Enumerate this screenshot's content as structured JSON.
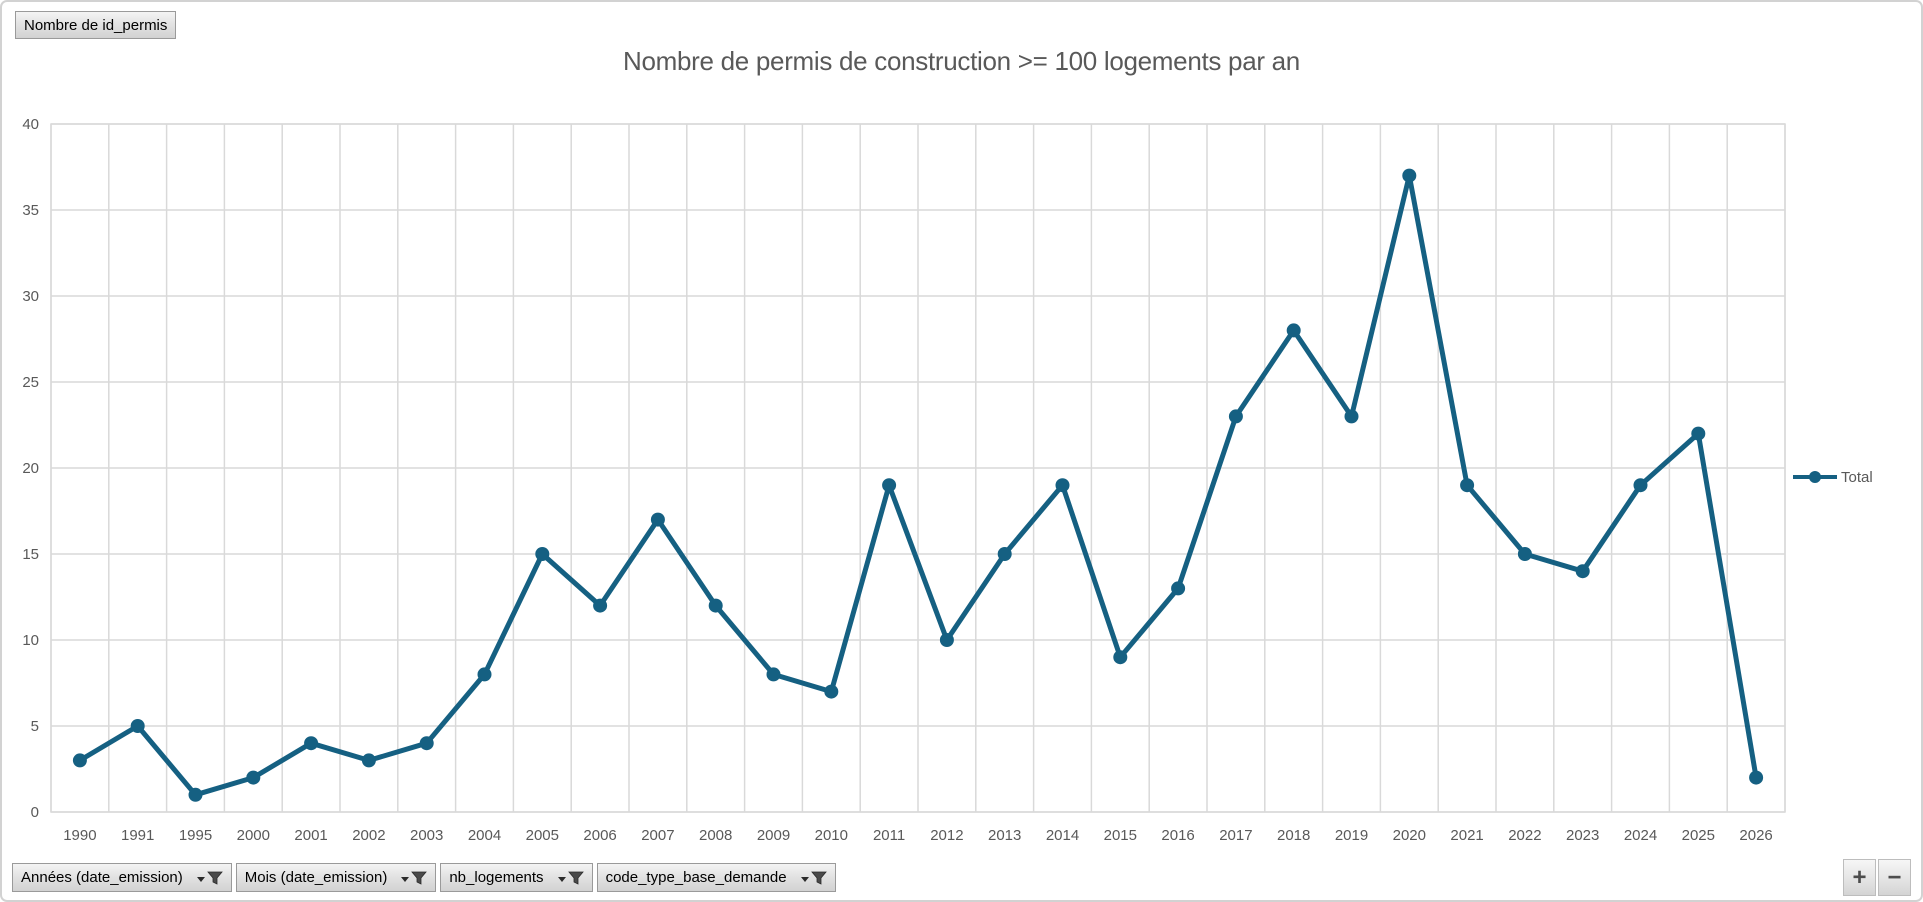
{
  "pivot_value_button": {
    "label": "Nombre de id_permis"
  },
  "chart_data": {
    "type": "line",
    "title": "Nombre de permis de construction >= 100 logements par an",
    "categories": [
      "1990",
      "1991",
      "1995",
      "2000",
      "2001",
      "2002",
      "2003",
      "2004",
      "2005",
      "2006",
      "2007",
      "2008",
      "2009",
      "2010",
      "2011",
      "2012",
      "2013",
      "2014",
      "2015",
      "2016",
      "2017",
      "2018",
      "2019",
      "2020",
      "2021",
      "2022",
      "2023",
      "2024",
      "2025",
      "2026"
    ],
    "series": [
      {
        "name": "Total",
        "values": [
          3,
          5,
          1,
          2,
          4,
          3,
          4,
          8,
          15,
          12,
          17,
          12,
          8,
          7,
          19,
          10,
          15,
          19,
          9,
          13,
          23,
          28,
          23,
          37,
          19,
          15,
          14,
          19,
          22,
          2
        ]
      }
    ],
    "xlabel": "",
    "ylabel": "",
    "ylim": [
      0,
      40
    ],
    "ytick_step": 5,
    "grid": true,
    "legend_position": "right",
    "line_color": "#156082"
  },
  "legend": {
    "label": "Total"
  },
  "field_buttons": [
    {
      "label": "Années (date_emission)"
    },
    {
      "label": "Mois (date_emission)"
    },
    {
      "label": "nb_logements"
    },
    {
      "label": "code_type_base_demande"
    }
  ],
  "zoom_controls": {
    "plus": "+",
    "minus": "−"
  },
  "colors": {
    "accent": "#156082",
    "grid": "#d9d9d9",
    "axis_text": "#595959",
    "plot_border": "#d9d9d9"
  }
}
